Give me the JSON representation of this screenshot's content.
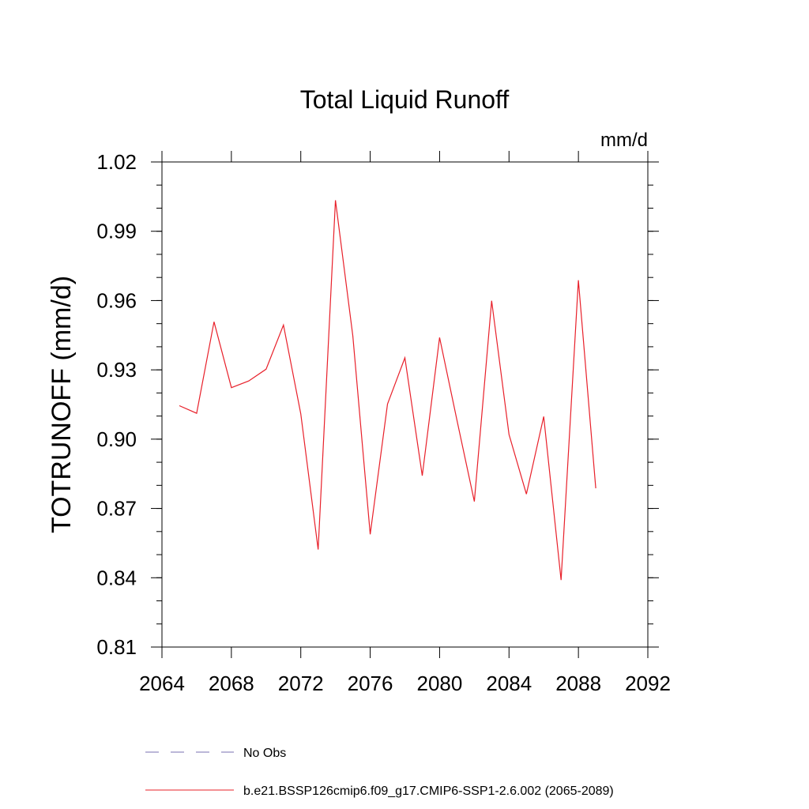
{
  "chart_data": {
    "type": "line",
    "title": "Total Liquid Runoff",
    "units_label": "mm/d",
    "ylabel": "TOTRUNOFF  (mm/d)",
    "xlabel": "",
    "xlim": [
      2064,
      2092
    ],
    "ylim": [
      0.81,
      1.02
    ],
    "x_ticks": [
      "2064",
      "2068",
      "2072",
      "2076",
      "2080",
      "2084",
      "2088",
      "2092"
    ],
    "y_ticks": [
      "0.81",
      "0.84",
      "0.87",
      "0.90",
      "0.93",
      "0.96",
      "0.99",
      "1.02"
    ],
    "x_tick_values": [
      2064,
      2068,
      2072,
      2076,
      2080,
      2084,
      2088,
      2092
    ],
    "y_tick_values": [
      0.81,
      0.84,
      0.87,
      0.9,
      0.93,
      0.96,
      0.99,
      1.02
    ],
    "grid": false,
    "legend_position": "bottom",
    "series": [
      {
        "name": "b.e21.BSSP126cmip6.f09_g17.CMIP6-SSP1-2.6.002 (2065-2089)",
        "color": "#e8202a",
        "x": [
          2065,
          2066,
          2067,
          2068,
          2069,
          2070,
          2071,
          2072,
          2073,
          2074,
          2075,
          2076,
          2077,
          2078,
          2079,
          2080,
          2081,
          2082,
          2083,
          2084,
          2085,
          2086,
          2087,
          2088,
          2089
        ],
        "values": [
          0.9145,
          0.9112,
          0.9508,
          0.9223,
          0.9252,
          0.9303,
          0.9494,
          0.911,
          0.8522,
          1.0034,
          0.9447,
          0.8588,
          0.9152,
          0.9352,
          0.8842,
          0.944,
          0.9082,
          0.873,
          0.9599,
          0.902,
          0.8762,
          0.9098,
          0.839,
          0.9688,
          0.8787
        ]
      }
    ],
    "legend": [
      {
        "label": "No Obs",
        "color": "#7a6fb0",
        "style": "dashed"
      },
      {
        "label": "b.e21.BSSP126cmip6.f09_g17.CMIP6-SSP1-2.6.002 (2065-2089)",
        "color": "#e8202a",
        "style": "solid"
      }
    ]
  }
}
